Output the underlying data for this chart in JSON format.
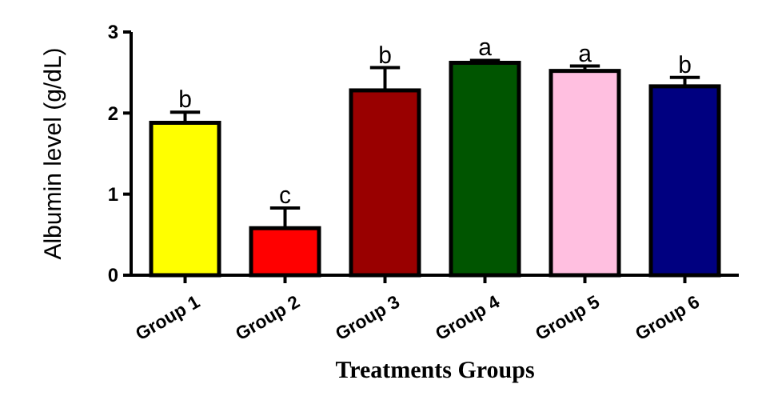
{
  "chart_data": {
    "type": "bar",
    "xlabel": "Treatments Groups",
    "ylabel": "Albumin level (g/dL)",
    "categories": [
      "Group 1",
      "Group 2",
      "Group 3",
      "Group 4",
      "Group 5",
      "Group 6"
    ],
    "values": [
      1.88,
      0.58,
      2.28,
      2.62,
      2.52,
      2.33
    ],
    "errors": [
      0.13,
      0.25,
      0.28,
      0.03,
      0.06,
      0.11
    ],
    "colors": [
      "#ffff00",
      "#ff0000",
      "#990000",
      "#005500",
      "#ffbfe0",
      "#000080"
    ],
    "ylim": [
      0,
      3
    ],
    "yticks": [
      0,
      1,
      2,
      3
    ],
    "grid": false,
    "annotations": [
      {
        "text": "b",
        "x": "Group 1",
        "y": 2.01
      },
      {
        "text": "c",
        "x": "Group 2",
        "y": 0.83
      },
      {
        "text": "b",
        "x": "Group 3",
        "y": 2.56
      },
      {
        "text": "a",
        "x": "Group 4",
        "y": 2.65
      },
      {
        "text": "a",
        "x": "Group 5",
        "y": 2.58
      },
      {
        "text": "b",
        "x": "Group 6",
        "y": 2.44
      }
    ]
  }
}
